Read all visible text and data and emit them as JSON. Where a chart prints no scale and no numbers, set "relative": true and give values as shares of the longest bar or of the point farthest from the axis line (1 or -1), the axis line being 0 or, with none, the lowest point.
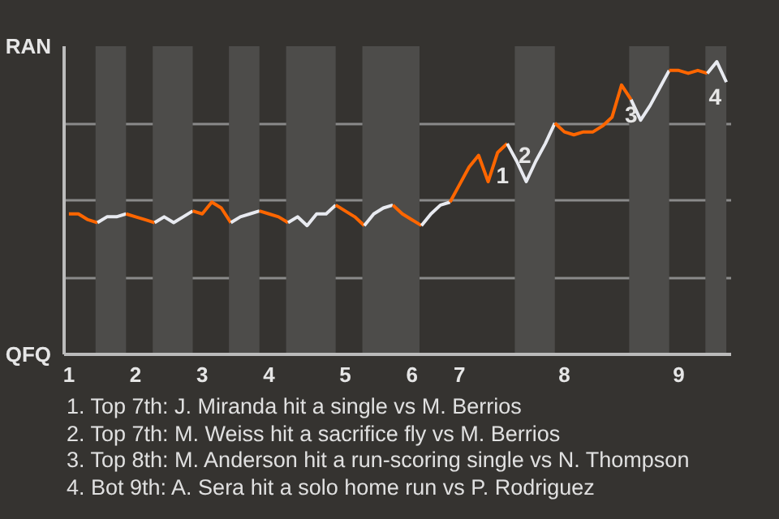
{
  "chart_data": {
    "type": "line",
    "relative": true,
    "categories": [
      "1",
      null,
      null,
      null,
      null,
      null,
      null,
      "2",
      null,
      null,
      null,
      null,
      null,
      null,
      "3",
      null,
      null,
      null,
      null,
      null,
      null,
      "4",
      null,
      null,
      null,
      null,
      null,
      null,
      null,
      "5",
      null,
      null,
      null,
      null,
      null,
      null,
      "6",
      null,
      null,
      null,
      null,
      "7",
      null,
      null,
      null,
      null,
      null,
      null,
      null,
      null,
      null,
      null,
      "8",
      null,
      null,
      null,
      null,
      null,
      null,
      null,
      null,
      null,
      null,
      null,
      "9",
      null,
      null,
      null,
      null,
      null
    ],
    "series": [
      {
        "color": "#ff6600",
        "values": [
          0.48,
          0.48,
          0.46,
          0.45,
          null,
          null,
          null,
          null,
          null,
          null,
          null,
          null,
          null,
          null,
          null,
          null,
          null,
          null,
          null,
          null,
          null,
          null,
          null,
          null,
          null,
          null,
          null,
          null,
          null,
          null,
          null,
          null,
          null,
          null,
          null,
          null,
          null,
          null,
          null,
          null,
          null,
          null,
          null,
          null,
          null,
          null,
          null,
          null,
          null,
          null,
          null,
          null,
          null,
          null,
          null,
          null,
          null,
          null,
          null,
          null,
          null,
          null,
          null,
          null,
          null,
          null,
          null,
          null,
          null,
          null
        ]
      },
      {
        "color": "#e8eaf0",
        "values": [
          null,
          null,
          null,
          0.45,
          0.47,
          0.47,
          0.48,
          null,
          null,
          null,
          null,
          null,
          null,
          null,
          null,
          null,
          null,
          null,
          null,
          null,
          null,
          null,
          null,
          null,
          null,
          null,
          null,
          null,
          null,
          null,
          null,
          null,
          null,
          null,
          null,
          null,
          null,
          null,
          null,
          null,
          null,
          null,
          null,
          null,
          null,
          null,
          null,
          null,
          null,
          null,
          null,
          null,
          null,
          null,
          null,
          null,
          null,
          null,
          null,
          null,
          null,
          null,
          null,
          null,
          null,
          null,
          null,
          null,
          null,
          null
        ]
      },
      {
        "color": "#ff6600",
        "values": [
          null,
          null,
          null,
          null,
          null,
          null,
          0.48,
          0.47,
          0.46,
          0.45,
          null,
          null,
          null,
          null,
          null,
          null,
          null,
          null,
          null,
          null,
          null,
          null,
          null,
          null,
          null,
          null,
          null,
          null,
          null,
          null,
          null,
          null,
          null,
          null,
          null,
          null,
          null,
          null,
          null,
          null,
          null,
          null,
          null,
          null,
          null,
          null,
          null,
          null,
          null,
          null,
          null,
          null,
          null,
          null,
          null,
          null,
          null,
          null,
          null,
          null,
          null,
          null,
          null,
          null,
          null,
          null,
          null,
          null,
          null,
          null
        ]
      },
      {
        "color": "#e8eaf0",
        "values": [
          null,
          null,
          null,
          null,
          null,
          null,
          null,
          null,
          null,
          0.45,
          0.47,
          0.45,
          0.47,
          0.49,
          null,
          null,
          null,
          null,
          null,
          null,
          null,
          null,
          null,
          null,
          null,
          null,
          null,
          null,
          null,
          null,
          null,
          null,
          null,
          null,
          null,
          null,
          null,
          null,
          null,
          null,
          null,
          null,
          null,
          null,
          null,
          null,
          null,
          null,
          null,
          null,
          null,
          null,
          null,
          null,
          null,
          null,
          null,
          null,
          null,
          null,
          null,
          null,
          null,
          null,
          null,
          null,
          null,
          null,
          null,
          null
        ]
      },
      {
        "color": "#ff6600",
        "values": [
          null,
          null,
          null,
          null,
          null,
          null,
          null,
          null,
          null,
          null,
          null,
          null,
          null,
          0.49,
          0.48,
          0.52,
          0.5,
          0.45,
          null,
          null,
          null,
          null,
          null,
          null,
          null,
          null,
          null,
          null,
          null,
          null,
          null,
          null,
          null,
          null,
          null,
          null,
          null,
          null,
          null,
          null,
          null,
          null,
          null,
          null,
          null,
          null,
          null,
          null,
          null,
          null,
          null,
          null,
          null,
          null,
          null,
          null,
          null,
          null,
          null,
          null,
          null,
          null,
          null,
          null,
          null,
          null,
          null,
          null,
          null,
          null
        ]
      },
      {
        "color": "#e8eaf0",
        "values": [
          null,
          null,
          null,
          null,
          null,
          null,
          null,
          null,
          null,
          null,
          null,
          null,
          null,
          null,
          null,
          null,
          null,
          0.45,
          0.47,
          0.48,
          0.49,
          null,
          null,
          null,
          null,
          null,
          null,
          null,
          null,
          null,
          null,
          null,
          null,
          null,
          null,
          null,
          null,
          null,
          null,
          null,
          null,
          null,
          null,
          null,
          null,
          null,
          null,
          null,
          null,
          null,
          null,
          null,
          null,
          null,
          null,
          null,
          null,
          null,
          null,
          null,
          null,
          null,
          null,
          null,
          null,
          null,
          null,
          null,
          null,
          null
        ]
      },
      {
        "color": "#ff6600",
        "values": [
          null,
          null,
          null,
          null,
          null,
          null,
          null,
          null,
          null,
          null,
          null,
          null,
          null,
          null,
          null,
          null,
          null,
          null,
          null,
          null,
          0.49,
          0.48,
          0.47,
          0.45,
          null,
          null,
          null,
          null,
          null,
          null,
          null,
          null,
          null,
          null,
          null,
          null,
          null,
          null,
          null,
          null,
          null,
          null,
          null,
          null,
          null,
          null,
          null,
          null,
          null,
          null,
          null,
          null,
          null,
          null,
          null,
          null,
          null,
          null,
          null,
          null,
          null,
          null,
          null,
          null,
          null,
          null,
          null,
          null,
          null,
          null
        ]
      },
      {
        "color": "#e8eaf0",
        "values": [
          null,
          null,
          null,
          null,
          null,
          null,
          null,
          null,
          null,
          null,
          null,
          null,
          null,
          null,
          null,
          null,
          null,
          null,
          null,
          null,
          null,
          null,
          null,
          0.45,
          0.47,
          0.44,
          0.48,
          0.48,
          0.51,
          null,
          null,
          null,
          null,
          null,
          null,
          null,
          null,
          null,
          null,
          null,
          null,
          null,
          null,
          null,
          null,
          null,
          null,
          null,
          null,
          null,
          null,
          null,
          null,
          null,
          null,
          null,
          null,
          null,
          null,
          null,
          null,
          null,
          null,
          null,
          null,
          null,
          null,
          null,
          null,
          null
        ]
      },
      {
        "color": "#ff6600",
        "values": [
          null,
          null,
          null,
          null,
          null,
          null,
          null,
          null,
          null,
          null,
          null,
          null,
          null,
          null,
          null,
          null,
          null,
          null,
          null,
          null,
          null,
          null,
          null,
          null,
          null,
          null,
          null,
          null,
          0.51,
          0.49,
          0.47,
          0.44,
          null,
          null,
          null,
          null,
          null,
          null,
          null,
          null,
          null,
          null,
          null,
          null,
          null,
          null,
          null,
          null,
          null,
          null,
          null,
          null,
          null,
          null,
          null,
          null,
          null,
          null,
          null,
          null,
          null,
          null,
          null,
          null,
          null,
          null,
          null,
          null,
          null,
          null
        ]
      },
      {
        "color": "#e8eaf0",
        "values": [
          null,
          null,
          null,
          null,
          null,
          null,
          null,
          null,
          null,
          null,
          null,
          null,
          null,
          null,
          null,
          null,
          null,
          null,
          null,
          null,
          null,
          null,
          null,
          null,
          null,
          null,
          null,
          null,
          null,
          null,
          null,
          0.44,
          0.48,
          0.5,
          0.51,
          null,
          null,
          null,
          null,
          null,
          null,
          null,
          null,
          null,
          null,
          null,
          null,
          null,
          null,
          null,
          null,
          null,
          null,
          null,
          null,
          null,
          null,
          null,
          null,
          null,
          null,
          null,
          null,
          null,
          null,
          null,
          null,
          null,
          null,
          null
        ]
      },
      {
        "color": "#ff6600",
        "values": [
          null,
          null,
          null,
          null,
          null,
          null,
          null,
          null,
          null,
          null,
          null,
          null,
          null,
          null,
          null,
          null,
          null,
          null,
          null,
          null,
          null,
          null,
          null,
          null,
          null,
          null,
          null,
          null,
          null,
          null,
          null,
          null,
          null,
          null,
          0.51,
          0.48,
          0.46,
          0.44,
          null,
          null,
          null,
          null,
          null,
          null,
          null,
          null,
          null,
          null,
          null,
          null,
          null,
          null,
          null,
          null,
          null,
          null,
          null,
          null,
          null,
          null,
          null,
          null,
          null,
          null,
          null,
          null,
          null,
          null,
          null,
          null
        ]
      },
      {
        "color": "#e8eaf0",
        "values": [
          null,
          null,
          null,
          null,
          null,
          null,
          null,
          null,
          null,
          null,
          null,
          null,
          null,
          null,
          null,
          null,
          null,
          null,
          null,
          null,
          null,
          null,
          null,
          null,
          null,
          null,
          null,
          null,
          null,
          null,
          null,
          null,
          null,
          null,
          null,
          null,
          null,
          0.44,
          0.48,
          0.51,
          0.52,
          null,
          null,
          null,
          null,
          null,
          null,
          null,
          null,
          null,
          null,
          null,
          null,
          null,
          null,
          null,
          null,
          null,
          null,
          null,
          null,
          null,
          null,
          null,
          null,
          null,
          null,
          null,
          null,
          null
        ]
      },
      {
        "color": "#ff6600",
        "values": [
          null,
          null,
          null,
          null,
          null,
          null,
          null,
          null,
          null,
          null,
          null,
          null,
          null,
          null,
          null,
          null,
          null,
          null,
          null,
          null,
          null,
          null,
          null,
          null,
          null,
          null,
          null,
          null,
          null,
          null,
          null,
          null,
          null,
          null,
          null,
          null,
          null,
          null,
          null,
          null,
          0.52,
          0.58,
          0.64,
          0.68,
          0.59,
          0.69,
          0.72,
          null,
          null,
          null,
          null,
          null,
          null,
          null,
          null,
          null,
          null,
          null,
          null,
          null,
          null,
          null,
          null,
          null,
          null,
          null,
          null,
          null,
          null,
          null
        ]
      },
      {
        "color": "#e8eaf0",
        "values": [
          null,
          null,
          null,
          null,
          null,
          null,
          null,
          null,
          null,
          null,
          null,
          null,
          null,
          null,
          null,
          null,
          null,
          null,
          null,
          null,
          null,
          null,
          null,
          null,
          null,
          null,
          null,
          null,
          null,
          null,
          null,
          null,
          null,
          null,
          null,
          null,
          null,
          null,
          null,
          null,
          null,
          null,
          null,
          null,
          null,
          null,
          0.72,
          0.66,
          0.59,
          0.66,
          0.72,
          0.79,
          null,
          null,
          null,
          null,
          null,
          null,
          null,
          null,
          null,
          null,
          null,
          null,
          null,
          null,
          null,
          null,
          null,
          null
        ]
      },
      {
        "color": "#ff6600",
        "values": [
          null,
          null,
          null,
          null,
          null,
          null,
          null,
          null,
          null,
          null,
          null,
          null,
          null,
          null,
          null,
          null,
          null,
          null,
          null,
          null,
          null,
          null,
          null,
          null,
          null,
          null,
          null,
          null,
          null,
          null,
          null,
          null,
          null,
          null,
          null,
          null,
          null,
          null,
          null,
          null,
          null,
          null,
          null,
          null,
          null,
          null,
          null,
          null,
          null,
          null,
          null,
          0.79,
          0.76,
          0.75,
          0.76,
          0.76,
          0.78,
          0.81,
          0.92,
          0.87,
          null,
          null,
          null,
          null,
          null,
          null,
          null,
          null,
          null,
          null
        ]
      },
      {
        "color": "#e8eaf0",
        "values": [
          null,
          null,
          null,
          null,
          null,
          null,
          null,
          null,
          null,
          null,
          null,
          null,
          null,
          null,
          null,
          null,
          null,
          null,
          null,
          null,
          null,
          null,
          null,
          null,
          null,
          null,
          null,
          null,
          null,
          null,
          null,
          null,
          null,
          null,
          null,
          null,
          null,
          null,
          null,
          null,
          null,
          null,
          null,
          null,
          null,
          null,
          null,
          null,
          null,
          null,
          null,
          null,
          null,
          null,
          null,
          null,
          null,
          null,
          null,
          0.87,
          0.8,
          0.85,
          0.91,
          0.97,
          null,
          null,
          null,
          null,
          null,
          null
        ]
      },
      {
        "color": "#ff6600",
        "values": [
          null,
          null,
          null,
          null,
          null,
          null,
          null,
          null,
          null,
          null,
          null,
          null,
          null,
          null,
          null,
          null,
          null,
          null,
          null,
          null,
          null,
          null,
          null,
          null,
          null,
          null,
          null,
          null,
          null,
          null,
          null,
          null,
          null,
          null,
          null,
          null,
          null,
          null,
          null,
          null,
          null,
          null,
          null,
          null,
          null,
          null,
          null,
          null,
          null,
          null,
          null,
          null,
          null,
          null,
          null,
          null,
          null,
          null,
          null,
          null,
          null,
          null,
          null,
          0.97,
          0.97,
          0.96,
          0.97,
          0.96,
          null,
          null
        ]
      },
      {
        "color": "#e8eaf0",
        "values": [
          null,
          null,
          null,
          null,
          null,
          null,
          null,
          null,
          null,
          null,
          null,
          null,
          null,
          null,
          null,
          null,
          null,
          null,
          null,
          null,
          null,
          null,
          null,
          null,
          null,
          null,
          null,
          null,
          null,
          null,
          null,
          null,
          null,
          null,
          null,
          null,
          null,
          null,
          null,
          null,
          null,
          null,
          null,
          null,
          null,
          null,
          null,
          null,
          null,
          null,
          null,
          null,
          null,
          null,
          null,
          null,
          null,
          null,
          null,
          null,
          null,
          null,
          null,
          null,
          null,
          null,
          null,
          0.96,
          1.0,
          0.93
        ]
      }
    ],
    "grid": "y",
    "annotations": [
      "RAN",
      "QFQ",
      "1",
      "2",
      "3",
      "4",
      "1. Top 7th: J. Miranda hit a single vs M. Berrios",
      "2. Top 7th: M. Weiss hit a sacrifice fly vs M. Berrios",
      "3. Top 8th: M. Anderson hit a run-scoring single vs N. Thompson",
      "4. Bot 9th: A. Sera hit a solo home run vs P. Rodriguez"
    ]
  }
}
